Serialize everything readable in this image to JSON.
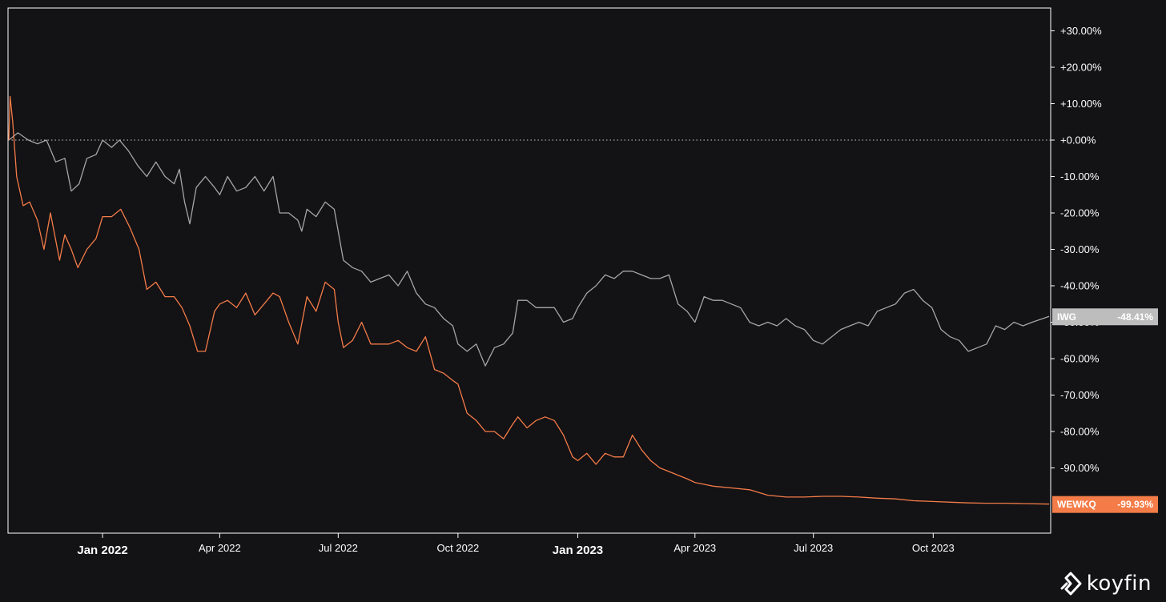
{
  "chart_data": {
    "type": "line",
    "x_range": [
      "2021-10-21",
      "2023-12-29"
    ],
    "ylim": [
      -100,
      35
    ],
    "yaxis_position": "right",
    "y_ticks": [
      30,
      20,
      10,
      0,
      -10,
      -20,
      -30,
      -40,
      -50,
      -60,
      -70,
      -80,
      -90
    ],
    "y_tick_labels": [
      "+30.00%",
      "+20.00%",
      "+10.00%",
      "+0.00%",
      "-10.00%",
      "-20.00%",
      "-30.00%",
      "-40.00%",
      "-50.00%",
      "-60.00%",
      "-70.00%",
      "-80.00%",
      "-90.00%"
    ],
    "x_ticks": [
      {
        "date": "2022-01-01",
        "label": "Jan 2022",
        "major": true
      },
      {
        "date": "2022-04-01",
        "label": "Apr 2022",
        "major": false
      },
      {
        "date": "2022-07-01",
        "label": "Jul 2022",
        "major": false
      },
      {
        "date": "2022-10-01",
        "label": "Oct 2022",
        "major": false
      },
      {
        "date": "2023-01-01",
        "label": "Jan 2023",
        "major": true
      },
      {
        "date": "2023-04-01",
        "label": "Apr 2023",
        "major": false
      },
      {
        "date": "2023-07-01",
        "label": "Jul 2023",
        "major": false
      },
      {
        "date": "2023-10-01",
        "label": "Oct 2023",
        "major": false
      }
    ],
    "zero_line": "dotted",
    "series": [
      {
        "name": "IWG",
        "color": "#a6a6a6",
        "last_value_label": "-48.41%",
        "points": [
          [
            "2021-10-21",
            0
          ],
          [
            "2021-10-28",
            2
          ],
          [
            "2021-11-05",
            0
          ],
          [
            "2021-11-12",
            -1
          ],
          [
            "2021-11-19",
            0
          ],
          [
            "2021-11-26",
            -6
          ],
          [
            "2021-12-03",
            -5
          ],
          [
            "2021-12-08",
            -14
          ],
          [
            "2021-12-14",
            -12
          ],
          [
            "2021-12-20",
            -5
          ],
          [
            "2021-12-27",
            -4
          ],
          [
            "2022-01-01",
            0
          ],
          [
            "2022-01-08",
            -2
          ],
          [
            "2022-01-14",
            0
          ],
          [
            "2022-01-21",
            -3
          ],
          [
            "2022-01-28",
            -7
          ],
          [
            "2022-02-04",
            -10
          ],
          [
            "2022-02-11",
            -6
          ],
          [
            "2022-02-18",
            -10
          ],
          [
            "2022-02-25",
            -12
          ],
          [
            "2022-03-01",
            -8
          ],
          [
            "2022-03-05",
            -17
          ],
          [
            "2022-03-09",
            -23
          ],
          [
            "2022-03-14",
            -13
          ],
          [
            "2022-03-21",
            -10
          ],
          [
            "2022-03-28",
            -13
          ],
          [
            "2022-04-01",
            -15
          ],
          [
            "2022-04-07",
            -10
          ],
          [
            "2022-04-14",
            -14
          ],
          [
            "2022-04-21",
            -13
          ],
          [
            "2022-04-28",
            -10
          ],
          [
            "2022-05-05",
            -14
          ],
          [
            "2022-05-12",
            -10
          ],
          [
            "2022-05-17",
            -20
          ],
          [
            "2022-05-24",
            -20
          ],
          [
            "2022-05-31",
            -22
          ],
          [
            "2022-06-03",
            -25
          ],
          [
            "2022-06-07",
            -19
          ],
          [
            "2022-06-14",
            -21
          ],
          [
            "2022-06-21",
            -17
          ],
          [
            "2022-06-28",
            -19
          ],
          [
            "2022-07-01",
            -25
          ],
          [
            "2022-07-05",
            -33
          ],
          [
            "2022-07-12",
            -35
          ],
          [
            "2022-07-19",
            -36
          ],
          [
            "2022-07-26",
            -39
          ],
          [
            "2022-08-02",
            -38
          ],
          [
            "2022-08-09",
            -37
          ],
          [
            "2022-08-16",
            -40
          ],
          [
            "2022-08-23",
            -36
          ],
          [
            "2022-08-30",
            -42
          ],
          [
            "2022-09-06",
            -45
          ],
          [
            "2022-09-13",
            -46
          ],
          [
            "2022-09-20",
            -49
          ],
          [
            "2022-09-27",
            -51
          ],
          [
            "2022-10-01",
            -56
          ],
          [
            "2022-10-08",
            -58
          ],
          [
            "2022-10-15",
            -56
          ],
          [
            "2022-10-22",
            -62
          ],
          [
            "2022-10-29",
            -57
          ],
          [
            "2022-11-05",
            -56
          ],
          [
            "2022-11-12",
            -53
          ],
          [
            "2022-11-16",
            -44
          ],
          [
            "2022-11-23",
            -44
          ],
          [
            "2022-11-30",
            -46
          ],
          [
            "2022-12-07",
            -46
          ],
          [
            "2022-12-14",
            -46
          ],
          [
            "2022-12-21",
            -50
          ],
          [
            "2022-12-28",
            -49
          ],
          [
            "2023-01-01",
            -46
          ],
          [
            "2023-01-08",
            -42
          ],
          [
            "2023-01-15",
            -40
          ],
          [
            "2023-01-22",
            -37
          ],
          [
            "2023-01-29",
            -38
          ],
          [
            "2023-02-05",
            -36
          ],
          [
            "2023-02-12",
            -36
          ],
          [
            "2023-02-19",
            -37
          ],
          [
            "2023-02-26",
            -38
          ],
          [
            "2023-03-05",
            -38
          ],
          [
            "2023-03-12",
            -37
          ],
          [
            "2023-03-19",
            -45
          ],
          [
            "2023-03-26",
            -47
          ],
          [
            "2023-04-01",
            -50
          ],
          [
            "2023-04-08",
            -43
          ],
          [
            "2023-04-15",
            -44
          ],
          [
            "2023-04-22",
            -44
          ],
          [
            "2023-04-29",
            -45
          ],
          [
            "2023-05-06",
            -46
          ],
          [
            "2023-05-13",
            -50
          ],
          [
            "2023-05-20",
            -51
          ],
          [
            "2023-05-27",
            -50
          ],
          [
            "2023-06-03",
            -51
          ],
          [
            "2023-06-10",
            -49
          ],
          [
            "2023-06-17",
            -51
          ],
          [
            "2023-06-24",
            -52
          ],
          [
            "2023-07-01",
            -55
          ],
          [
            "2023-07-08",
            -56
          ],
          [
            "2023-07-15",
            -54
          ],
          [
            "2023-07-22",
            -52
          ],
          [
            "2023-07-29",
            -51
          ],
          [
            "2023-08-05",
            -50
          ],
          [
            "2023-08-12",
            -51
          ],
          [
            "2023-08-19",
            -47
          ],
          [
            "2023-08-26",
            -46
          ],
          [
            "2023-09-02",
            -45
          ],
          [
            "2023-09-09",
            -42
          ],
          [
            "2023-09-16",
            -41
          ],
          [
            "2023-09-23",
            -44
          ],
          [
            "2023-09-30",
            -46
          ],
          [
            "2023-10-07",
            -52
          ],
          [
            "2023-10-14",
            -54
          ],
          [
            "2023-10-21",
            -55
          ],
          [
            "2023-10-28",
            -58
          ],
          [
            "2023-11-04",
            -57
          ],
          [
            "2023-11-11",
            -56
          ],
          [
            "2023-11-18",
            -51
          ],
          [
            "2023-11-25",
            -52
          ],
          [
            "2023-12-02",
            -50
          ],
          [
            "2023-12-09",
            -51
          ],
          [
            "2023-12-16",
            -50
          ],
          [
            "2023-12-29",
            -48.41
          ]
        ]
      },
      {
        "name": "WEWKQ",
        "color": "#f47c48",
        "last_value_label": "-99.93%",
        "points": [
          [
            "2021-10-21",
            0
          ],
          [
            "2021-10-22",
            12
          ],
          [
            "2021-10-24",
            5
          ],
          [
            "2021-10-27",
            -10
          ],
          [
            "2021-11-01",
            -18
          ],
          [
            "2021-11-06",
            -17
          ],
          [
            "2021-11-12",
            -22
          ],
          [
            "2021-11-17",
            -30
          ],
          [
            "2021-11-22",
            -20
          ],
          [
            "2021-11-29",
            -33
          ],
          [
            "2021-12-03",
            -26
          ],
          [
            "2021-12-08",
            -30
          ],
          [
            "2021-12-13",
            -35
          ],
          [
            "2021-12-20",
            -30
          ],
          [
            "2021-12-27",
            -27
          ],
          [
            "2022-01-01",
            -21
          ],
          [
            "2022-01-08",
            -21
          ],
          [
            "2022-01-15",
            -19
          ],
          [
            "2022-01-22",
            -24
          ],
          [
            "2022-01-29",
            -30
          ],
          [
            "2022-02-04",
            -41
          ],
          [
            "2022-02-11",
            -39
          ],
          [
            "2022-02-18",
            -43
          ],
          [
            "2022-02-25",
            -43
          ],
          [
            "2022-03-03",
            -46
          ],
          [
            "2022-03-09",
            -51
          ],
          [
            "2022-03-15",
            -58
          ],
          [
            "2022-03-21",
            -58
          ],
          [
            "2022-03-28",
            -47
          ],
          [
            "2022-04-01",
            -45
          ],
          [
            "2022-04-07",
            -44
          ],
          [
            "2022-04-14",
            -46
          ],
          [
            "2022-04-21",
            -42
          ],
          [
            "2022-04-28",
            -48
          ],
          [
            "2022-05-05",
            -45
          ],
          [
            "2022-05-12",
            -42
          ],
          [
            "2022-05-17",
            -43
          ],
          [
            "2022-05-24",
            -50
          ],
          [
            "2022-05-31",
            -56
          ],
          [
            "2022-06-07",
            -43
          ],
          [
            "2022-06-14",
            -47
          ],
          [
            "2022-06-21",
            -39
          ],
          [
            "2022-06-28",
            -41
          ],
          [
            "2022-07-01",
            -50
          ],
          [
            "2022-07-05",
            -57
          ],
          [
            "2022-07-12",
            -55
          ],
          [
            "2022-07-19",
            -50
          ],
          [
            "2022-07-26",
            -56
          ],
          [
            "2022-08-02",
            -56
          ],
          [
            "2022-08-09",
            -56
          ],
          [
            "2022-08-16",
            -55
          ],
          [
            "2022-08-23",
            -57
          ],
          [
            "2022-08-30",
            -58
          ],
          [
            "2022-09-06",
            -54
          ],
          [
            "2022-09-13",
            -63
          ],
          [
            "2022-09-20",
            -64
          ],
          [
            "2022-09-27",
            -66
          ],
          [
            "2022-10-01",
            -67
          ],
          [
            "2022-10-08",
            -75
          ],
          [
            "2022-10-15",
            -77
          ],
          [
            "2022-10-22",
            -80
          ],
          [
            "2022-10-29",
            -80
          ],
          [
            "2022-11-05",
            -82
          ],
          [
            "2022-11-12",
            -78
          ],
          [
            "2022-11-16",
            -76
          ],
          [
            "2022-11-23",
            -79
          ],
          [
            "2022-11-30",
            -77
          ],
          [
            "2022-12-07",
            -76
          ],
          [
            "2022-12-14",
            -77
          ],
          [
            "2022-12-21",
            -81
          ],
          [
            "2022-12-28",
            -87
          ],
          [
            "2023-01-01",
            -88
          ],
          [
            "2023-01-08",
            -86
          ],
          [
            "2023-01-15",
            -89
          ],
          [
            "2023-01-22",
            -86
          ],
          [
            "2023-01-29",
            -87
          ],
          [
            "2023-02-05",
            -87
          ],
          [
            "2023-02-12",
            -81
          ],
          [
            "2023-02-19",
            -85
          ],
          [
            "2023-02-26",
            -88
          ],
          [
            "2023-03-05",
            -90
          ],
          [
            "2023-03-12",
            -91
          ],
          [
            "2023-03-19",
            -92
          ],
          [
            "2023-03-26",
            -93
          ],
          [
            "2023-04-01",
            -94
          ],
          [
            "2023-04-08",
            -94.5
          ],
          [
            "2023-04-15",
            -95
          ],
          [
            "2023-04-29",
            -95.5
          ],
          [
            "2023-05-13",
            -96
          ],
          [
            "2023-05-27",
            -97.5
          ],
          [
            "2023-06-10",
            -98
          ],
          [
            "2023-06-24",
            -98
          ],
          [
            "2023-07-08",
            -97.8
          ],
          [
            "2023-07-22",
            -97.8
          ],
          [
            "2023-08-05",
            -98
          ],
          [
            "2023-08-19",
            -98.3
          ],
          [
            "2023-09-02",
            -98.5
          ],
          [
            "2023-09-16",
            -99
          ],
          [
            "2023-09-30",
            -99.2
          ],
          [
            "2023-10-14",
            -99.4
          ],
          [
            "2023-10-28",
            -99.6
          ],
          [
            "2023-11-11",
            -99.7
          ],
          [
            "2023-11-25",
            -99.7
          ],
          [
            "2023-12-09",
            -99.8
          ],
          [
            "2023-12-29",
            -99.93
          ]
        ]
      }
    ]
  },
  "branding": {
    "logo_text": "koyfin",
    "logo_icon": "koyfin-logo-icon"
  },
  "colors": {
    "background": "#131215",
    "frame": "#ffffff",
    "text": "#ffffff"
  }
}
